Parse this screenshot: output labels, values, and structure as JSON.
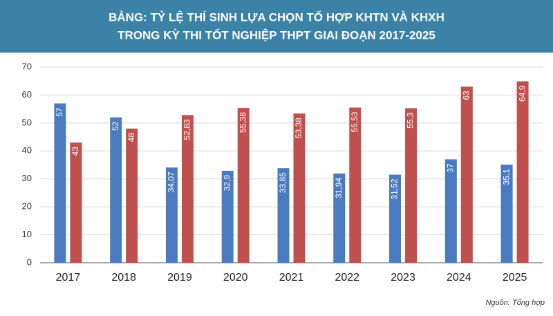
{
  "chart_data": {
    "type": "bar",
    "title": [
      "BẢNG: TỶ LỆ THÍ SINH LỰA CHỌN TỔ HỢP KHTN VÀ KHXH",
      "TRONG KỲ THI TỐT NGHIỆP THPT GIAI ĐOẠN 2017-2025"
    ],
    "source": "Nguồn: Tổng hợp",
    "categories": [
      "2017",
      "2018",
      "2019",
      "2020",
      "2021",
      "2022",
      "2023",
      "2024",
      "2025"
    ],
    "series": [
      {
        "color": "#4a7bc0",
        "values": [
          57,
          52,
          34.07,
          32.9,
          33.85,
          31.94,
          31.52,
          37,
          35.1
        ],
        "value_labels": [
          "57",
          "52",
          "34,07",
          "32,9",
          "33,85",
          "31,94",
          "31,52",
          "37",
          "35,1"
        ]
      },
      {
        "color": "#c0504d",
        "values": [
          43,
          48,
          52.83,
          55.38,
          53.38,
          55.53,
          55.3,
          63,
          64.9
        ],
        "value_labels": [
          "43",
          "48",
          "52,83",
          "55,38",
          "53,38",
          "55,53",
          "55,3",
          "63",
          "64,9"
        ]
      }
    ],
    "ylim": [
      0,
      70
    ],
    "yticks": [
      0,
      10,
      20,
      30,
      40,
      50,
      60,
      70
    ],
    "grid": true
  }
}
